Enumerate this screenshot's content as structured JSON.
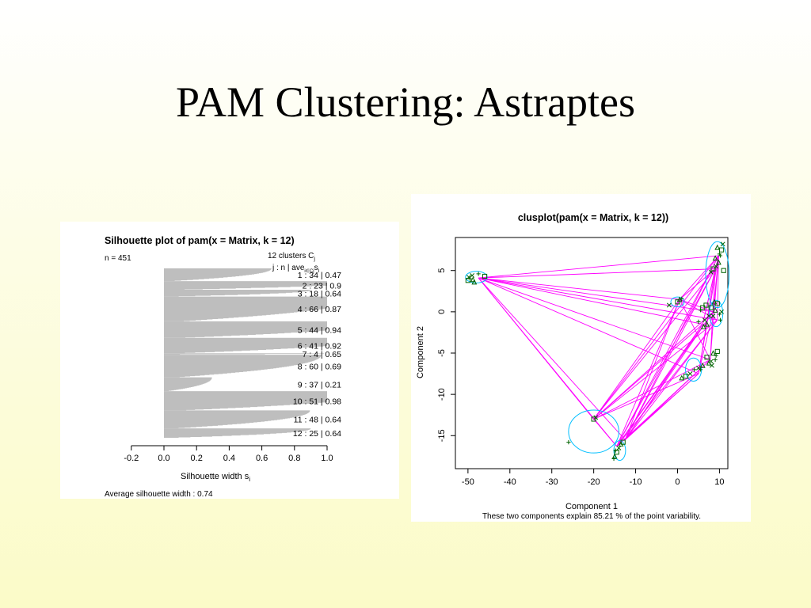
{
  "slide": {
    "title": "PAM Clustering: Astraptes"
  },
  "chart_data": [
    {
      "type": "bar",
      "title": "Silhouette plot of pam(x = Matrix, k = 12)",
      "n_label": "n = 451",
      "header_line1": "12  clusters  C",
      "header_line1_sub": "j",
      "header_line2": "j :  n | ave",
      "header_line2_sub1": "i∈Cj",
      "header_line2_tail": "s",
      "header_line2_sub2": "i",
      "xlabel": "Silhouette width s",
      "xlabel_sub": "i",
      "xlim": [
        -0.2,
        1.0
      ],
      "xticks": [
        "-0.2",
        "0.0",
        "0.2",
        "0.4",
        "0.6",
        "0.8",
        "1.0"
      ],
      "clusters": [
        {
          "j": 1,
          "n": 34,
          "ave": 0.47,
          "label": "1 :  34  |  0.47"
        },
        {
          "j": 2,
          "n": 23,
          "ave": 0.9,
          "label": "2 :  23  |  0.9"
        },
        {
          "j": 3,
          "n": 18,
          "ave": 0.64,
          "label": "3 :  18  |  0.64"
        },
        {
          "j": 4,
          "n": 66,
          "ave": 0.87,
          "label": "4 :  66  |  0.87"
        },
        {
          "j": 5,
          "n": 44,
          "ave": 0.94,
          "label": "5 :  44  |  0.94"
        },
        {
          "j": 6,
          "n": 41,
          "ave": 0.92,
          "label": "6 :  41  |  0.92"
        },
        {
          "j": 7,
          "n": 4,
          "ave": 0.65,
          "label": "7 :   4  |  0.65"
        },
        {
          "j": 8,
          "n": 60,
          "ave": 0.69,
          "label": "8 :  60  |  0.69"
        },
        {
          "j": 9,
          "n": 37,
          "ave": 0.21,
          "label": "9 :  37  |  0.21"
        },
        {
          "j": 10,
          "n": 51,
          "ave": 0.98,
          "label": "10 :  51  |  0.98"
        },
        {
          "j": 11,
          "n": 48,
          "ave": 0.64,
          "label": "11 :  48  |  0.64"
        },
        {
          "j": 12,
          "n": 25,
          "ave": 0.64,
          "label": "12 :   25  |  0.64"
        }
      ],
      "footer": "Average silhouette width :  0.74",
      "bar_color": "#bebebe"
    },
    {
      "type": "scatter",
      "title": "clusplot(pam(x = Matrix, k = 12))",
      "xlabel": "Component 1",
      "ylabel": "Component 2",
      "subtitle": "These two components explain 85.21 % of the point variability.",
      "xlim": [
        -53,
        12
      ],
      "ylim": [
        -19,
        9
      ],
      "xticks": [
        -50,
        -40,
        -30,
        -20,
        -10,
        0,
        10
      ],
      "yticks": [
        5,
        0,
        -5,
        -10,
        -15
      ],
      "point_color": "#006400",
      "line_color": "#ff00ff",
      "ellipse_color": "#00bfff",
      "medoids": [
        {
          "x": -47.5,
          "y": 4.1
        },
        {
          "x": -20.0,
          "y": -13.0
        },
        {
          "x": -14.5,
          "y": -16.3
        },
        {
          "x": -12.5,
          "y": -15.5
        },
        {
          "x": 0.5,
          "y": 1.5
        },
        {
          "x": 5.0,
          "y": -7.5
        },
        {
          "x": 6.0,
          "y": -1.5
        },
        {
          "x": 7.8,
          "y": -5.8
        },
        {
          "x": 8.5,
          "y": 0.0
        },
        {
          "x": 9.0,
          "y": 5.2
        },
        {
          "x": 9.5,
          "y": -1.0
        },
        {
          "x": 9.8,
          "y": 6.8
        }
      ],
      "points": [
        {
          "x": -49.5,
          "y": 4.0
        },
        {
          "x": -50.0,
          "y": 3.8
        },
        {
          "x": -49.0,
          "y": 4.4
        },
        {
          "x": -48.5,
          "y": 3.6
        },
        {
          "x": -47.5,
          "y": 4.6
        },
        {
          "x": -46.0,
          "y": 4.3
        },
        {
          "x": -49.8,
          "y": 4.2
        },
        {
          "x": -48.8,
          "y": 3.9
        },
        {
          "x": -26.0,
          "y": -15.8
        },
        {
          "x": -20.0,
          "y": -13.0
        },
        {
          "x": -19.5,
          "y": -12.8
        },
        {
          "x": -15.0,
          "y": -17.5
        },
        {
          "x": -14.8,
          "y": -16.8
        },
        {
          "x": -14.5,
          "y": -17.0
        },
        {
          "x": -14.0,
          "y": -16.5
        },
        {
          "x": -13.5,
          "y": -16.0
        },
        {
          "x": -15.2,
          "y": -17.8
        },
        {
          "x": -13.0,
          "y": -15.8
        },
        {
          "x": -2.0,
          "y": 0.8
        },
        {
          "x": 0.5,
          "y": 1.5
        },
        {
          "x": 1.0,
          "y": 1.6
        },
        {
          "x": 0.0,
          "y": 1.2
        },
        {
          "x": 3.0,
          "y": -7.5
        },
        {
          "x": 1.0,
          "y": -8.0
        },
        {
          "x": 4.0,
          "y": -7.0
        },
        {
          "x": 2.0,
          "y": -7.8
        },
        {
          "x": 5.0,
          "y": -6.8
        },
        {
          "x": 6.0,
          "y": -6.5
        },
        {
          "x": 5.5,
          "y": -7.0
        },
        {
          "x": 6.0,
          "y": 0.5
        },
        {
          "x": 6.5,
          "y": -1.0
        },
        {
          "x": 7.0,
          "y": -1.5
        },
        {
          "x": 5.0,
          "y": -1.2
        },
        {
          "x": 6.8,
          "y": 0.8
        },
        {
          "x": 7.5,
          "y": -0.5
        },
        {
          "x": 6.2,
          "y": -1.8
        },
        {
          "x": 5.5,
          "y": 0.2
        },
        {
          "x": 7.0,
          "y": -5.5
        },
        {
          "x": 8.0,
          "y": -6.0
        },
        {
          "x": 8.5,
          "y": -5.0
        },
        {
          "x": 9.0,
          "y": -5.8
        },
        {
          "x": 9.5,
          "y": -4.8
        },
        {
          "x": 8.2,
          "y": -6.5
        },
        {
          "x": 7.5,
          "y": -6.2
        },
        {
          "x": 9.2,
          "y": -5.3
        },
        {
          "x": 8.0,
          "y": 0.5
        },
        {
          "x": 8.5,
          "y": -0.5
        },
        {
          "x": 9.0,
          "y": 0.2
        },
        {
          "x": 10.0,
          "y": -0.3
        },
        {
          "x": 9.5,
          "y": 1.0
        },
        {
          "x": 10.5,
          "y": 0.0
        },
        {
          "x": 8.8,
          "y": 1.2
        },
        {
          "x": 10.2,
          "y": -1.0
        },
        {
          "x": 8.5,
          "y": 5.2
        },
        {
          "x": 9.2,
          "y": 5.5
        },
        {
          "x": 9.8,
          "y": 6.0
        },
        {
          "x": 10.2,
          "y": 6.8
        },
        {
          "x": 10.5,
          "y": 7.5
        },
        {
          "x": 10.8,
          "y": 8.2
        },
        {
          "x": 9.0,
          "y": 6.5
        },
        {
          "x": 10.0,
          "y": 7.0
        },
        {
          "x": 11.0,
          "y": 5.0
        },
        {
          "x": 8.0,
          "y": 4.8
        },
        {
          "x": 9.5,
          "y": 7.8
        }
      ],
      "links": [
        {
          "from": 0,
          "to": 11
        },
        {
          "from": 0,
          "to": 10
        },
        {
          "from": 0,
          "to": 8
        },
        {
          "from": 0,
          "to": 7
        },
        {
          "from": 0,
          "to": 6
        },
        {
          "from": 0,
          "to": 5
        },
        {
          "from": 0,
          "to": 4
        },
        {
          "from": 0,
          "to": 3
        },
        {
          "from": 0,
          "to": 2
        },
        {
          "from": 0,
          "to": 1
        },
        {
          "from": 0,
          "to": 9
        },
        {
          "from": 1,
          "to": 11
        },
        {
          "from": 1,
          "to": 10
        },
        {
          "from": 1,
          "to": 8
        },
        {
          "from": 1,
          "to": 7
        },
        {
          "from": 1,
          "to": 6
        },
        {
          "from": 1,
          "to": 5
        },
        {
          "from": 1,
          "to": 4
        },
        {
          "from": 1,
          "to": 2
        },
        {
          "from": 1,
          "to": 9
        },
        {
          "from": 2,
          "to": 11
        },
        {
          "from": 2,
          "to": 10
        },
        {
          "from": 2,
          "to": 8
        },
        {
          "from": 2,
          "to": 7
        },
        {
          "from": 2,
          "to": 6
        },
        {
          "from": 2,
          "to": 5
        },
        {
          "from": 2,
          "to": 4
        },
        {
          "from": 2,
          "to": 9
        },
        {
          "from": 3,
          "to": 11
        },
        {
          "from": 3,
          "to": 10
        },
        {
          "from": 3,
          "to": 8
        },
        {
          "from": 3,
          "to": 7
        },
        {
          "from": 3,
          "to": 6
        },
        {
          "from": 3,
          "to": 5
        },
        {
          "from": 3,
          "to": 4
        },
        {
          "from": 3,
          "to": 9
        },
        {
          "from": 4,
          "to": 11
        },
        {
          "from": 4,
          "to": 10
        },
        {
          "from": 4,
          "to": 8
        },
        {
          "from": 4,
          "to": 7
        },
        {
          "from": 4,
          "to": 9
        },
        {
          "from": 5,
          "to": 11
        },
        {
          "from": 5,
          "to": 9
        },
        {
          "from": 5,
          "to": 8
        },
        {
          "from": 6,
          "to": 11
        },
        {
          "from": 6,
          "to": 9
        },
        {
          "from": 7,
          "to": 11
        },
        {
          "from": 7,
          "to": 9
        },
        {
          "from": 8,
          "to": 11
        },
        {
          "from": 10,
          "to": 11
        }
      ],
      "ellipses": [
        {
          "cx": -48.0,
          "cy": 4.2,
          "rx": 2.6,
          "ry": 0.7
        },
        {
          "cx": 9.5,
          "cy": 4.5,
          "rx": 2.8,
          "ry": 4.0
        },
        {
          "cx": 9.2,
          "cy": -0.2,
          "rx": 1.6,
          "ry": 1.6
        },
        {
          "cx": 3.8,
          "cy": -7.0,
          "rx": 1.9,
          "ry": 1.4
        },
        {
          "cx": -20.0,
          "cy": -14.5,
          "rx": 6.0,
          "ry": 2.6
        },
        {
          "cx": -13.8,
          "cy": -16.8,
          "rx": 1.4,
          "ry": 1.2
        },
        {
          "cx": 0.0,
          "cy": 1.2,
          "rx": 1.6,
          "ry": 0.6
        }
      ]
    }
  ]
}
